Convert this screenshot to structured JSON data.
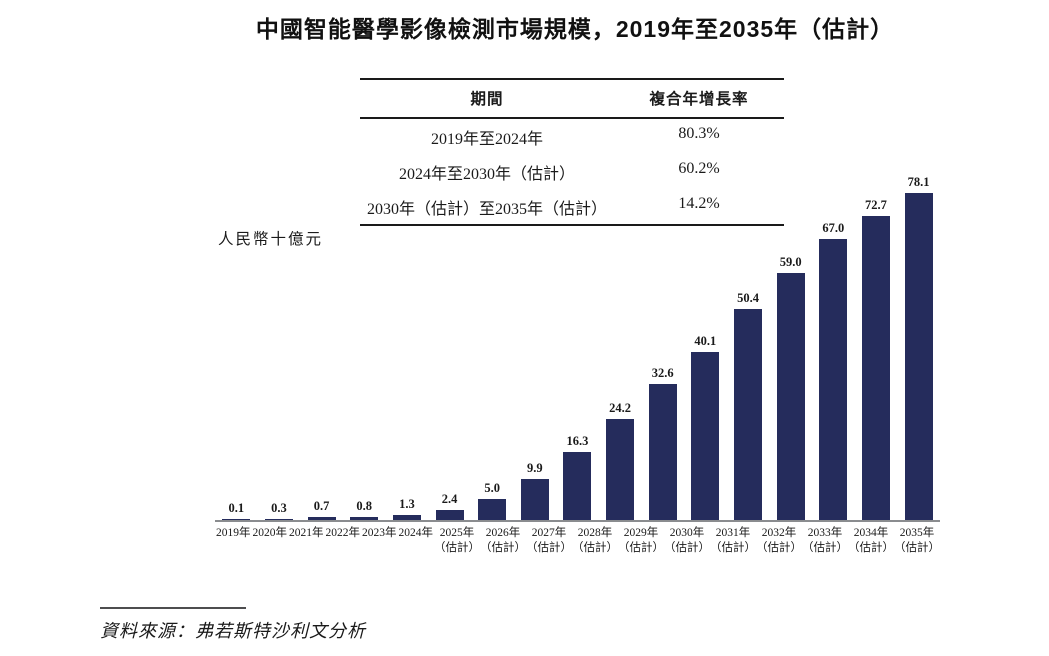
{
  "title": "中國智能醫學影像檢測市場規模，2019年至2035年（估計）",
  "cagr_table": {
    "headers": {
      "period": "期間",
      "cagr": "複合年增長率"
    },
    "rows": [
      {
        "period": "2019年至2024年",
        "cagr": "80.3%"
      },
      {
        "period": "2024年至2030年（估計）",
        "cagr": "60.2%"
      },
      {
        "period": "2030年（估計）至2035年（估計）",
        "cagr": "14.2%"
      }
    ]
  },
  "chart_data": {
    "type": "bar",
    "title": "中國智能醫學影像檢測市場規模，2019年至2035年（估計）",
    "ylabel": "人民幣十億元",
    "xlabel": "",
    "ylim": [
      0,
      80
    ],
    "grid": false,
    "legend": "none",
    "bar_color": "#252c5c",
    "axis_color": "#8a8c8f",
    "categories": [
      "2019年",
      "2020年",
      "2021年",
      "2022年",
      "2023年",
      "2024年",
      "2025年",
      "2026年",
      "2027年",
      "2028年",
      "2029年",
      "2030年",
      "2031年",
      "2032年",
      "2033年",
      "2034年",
      "2035年"
    ],
    "estimate_note": "（估計）",
    "estimate_start_index": 6,
    "values": [
      0.1,
      0.3,
      0.7,
      0.8,
      1.3,
      2.4,
      5.0,
      9.9,
      16.3,
      24.2,
      32.6,
      40.1,
      50.4,
      59.0,
      67.0,
      72.7,
      78.1
    ],
    "value_labels": [
      "0.1",
      "0.3",
      "0.7",
      "0.8",
      "1.3",
      "2.4",
      "5.0",
      "9.9",
      "16.3",
      "24.2",
      "32.6",
      "40.1",
      "50.4",
      "59.0",
      "67.0",
      "72.7",
      "78.1"
    ]
  },
  "source_note": "資料來源：弗若斯特沙利文分析"
}
